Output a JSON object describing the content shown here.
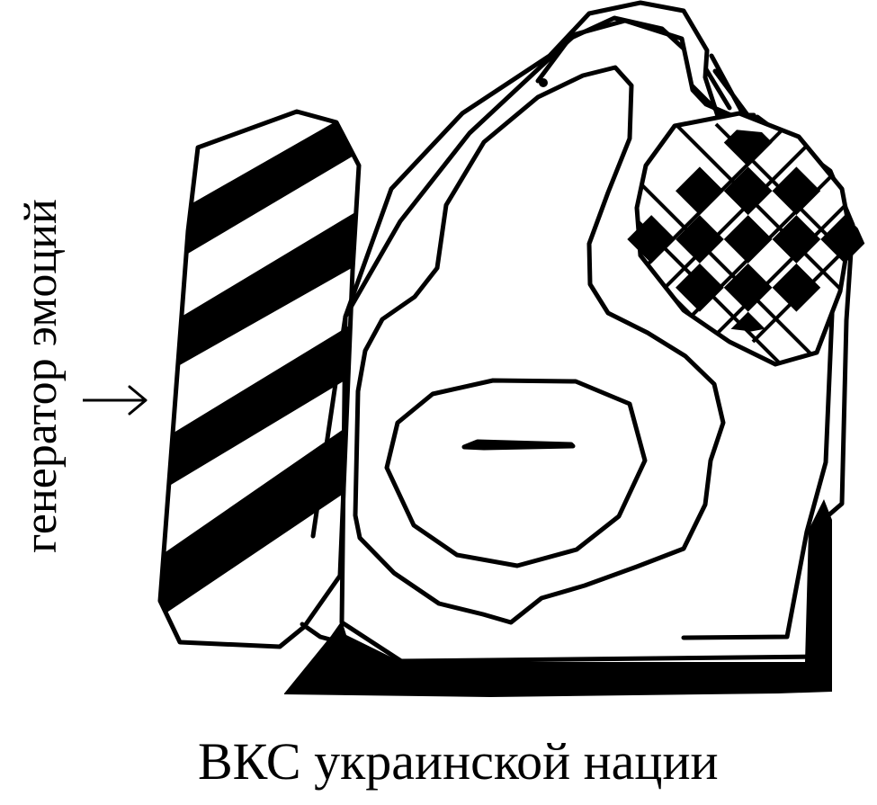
{
  "labels": {
    "left_label": "генератор эмоций",
    "caption": "ВКС украинской нации"
  },
  "icons": {
    "arrow": "arrow-right-icon"
  },
  "colors": {
    "ink": "#000000",
    "paper": "#ffffff"
  }
}
